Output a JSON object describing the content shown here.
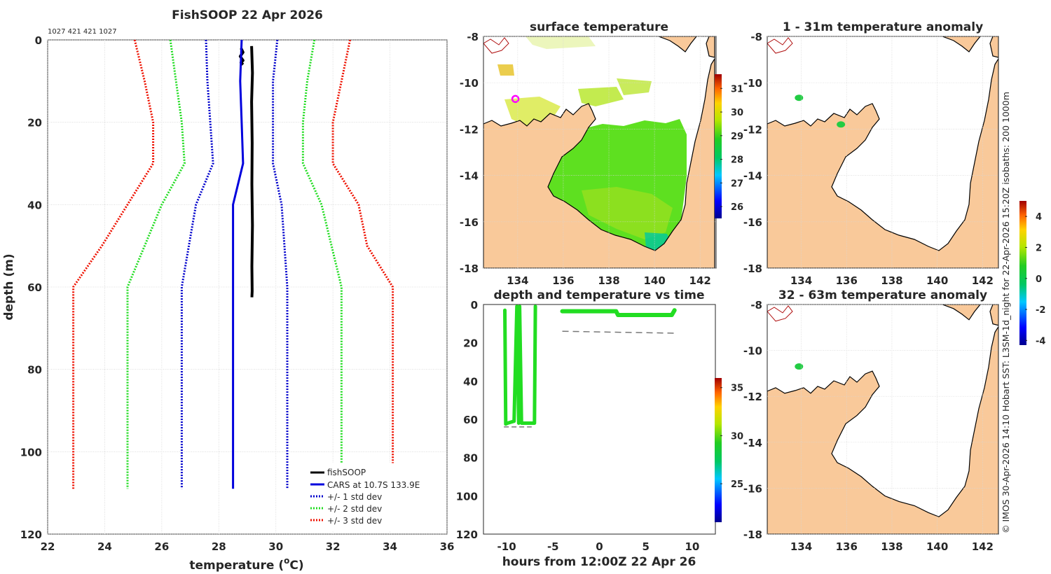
{
  "page_title": "FishSOOP 22 Apr 2026",
  "header_ids": "1027 421 421 1027",
  "copyright": "© IMOS 30-Apr-2026 14:10 Hobart SST: L3SM-1d_night for 22-Apr-2026 15:20Z isobaths: 200  1000m",
  "colors": {
    "fishsoop": "#000000",
    "cars": "#0000dd",
    "std1": "#0000cc",
    "std2": "#22dd22",
    "std3": "#ee1100",
    "land": "#f9c99a",
    "sst_green": "#22cc22",
    "grid": "#d6d6d6"
  },
  "chart_data": [
    {
      "id": "profile",
      "type": "line",
      "title": "FishSOOP 22 Apr 2026",
      "xlabel": "temperature (",
      "xlabel_sup": "o",
      "xlabel_tail": "C)",
      "ylabel": "depth (m)",
      "xlim": [
        22,
        36
      ],
      "ylim": [
        0,
        120
      ],
      "y_reversed": true,
      "grid": true,
      "xticks": [
        "22",
        "24",
        "26",
        "28",
        "30",
        "32",
        "34",
        "36"
      ],
      "yticks": [
        "0",
        "20",
        "40",
        "60",
        "80",
        "100",
        "120"
      ],
      "legend_position": "bottom-right",
      "legend": [
        "fishSOOP",
        "CARS at 10.7S 133.9E",
        "+/- 1 std dev",
        "+/- 2 std dev",
        "+/- 3 std dev"
      ],
      "series": [
        {
          "name": "fishSOOP",
          "style": "solid-thick",
          "color": "#000000",
          "x": [
            29.15,
            29.18,
            29.15,
            29.17,
            29.16,
            29.18,
            29.16,
            29.17,
            29.16
          ],
          "y": [
            1.5,
            8,
            15,
            25,
            35,
            45,
            55,
            61,
            62.5
          ]
        },
        {
          "name": "fishSOOP cast 2",
          "style": "solid-thick",
          "color": "#000000",
          "x": [
            28.78,
            28.85,
            28.75,
            28.85,
            28.78,
            28.85
          ],
          "y": [
            2,
            3,
            4,
            5,
            5.5,
            6
          ]
        },
        {
          "name": "CARS at 10.7S 133.9E",
          "style": "solid",
          "color": "#0000dd",
          "x": [
            28.8,
            28.75,
            28.8,
            28.85,
            28.5,
            28.5
          ],
          "y": [
            0,
            10,
            20,
            30,
            40,
            60
          ],
          "y_end": 109
        },
        {
          "name": "+1 std dev",
          "style": "dotted",
          "color": "#0000cc",
          "x": [
            30.05,
            29.9,
            29.9,
            29.9,
            30.2,
            30.4,
            30.4
          ],
          "y": [
            0,
            10,
            20,
            30,
            40,
            60,
            109
          ]
        },
        {
          "name": "-1 std dev",
          "style": "dotted",
          "color": "#0000cc",
          "x": [
            27.55,
            27.6,
            27.7,
            27.8,
            27.2,
            26.7,
            26.7
          ],
          "y": [
            0,
            10,
            20,
            30,
            40,
            60,
            109
          ]
        },
        {
          "name": "+2 std dev",
          "style": "dotted",
          "color": "#22dd22",
          "x": [
            31.35,
            31.1,
            30.95,
            30.95,
            31.6,
            32.3,
            32.3
          ],
          "y": [
            0,
            10,
            20,
            30,
            40,
            60,
            109
          ]
        },
        {
          "name": "-2 std dev",
          "style": "dotted",
          "color": "#22dd22",
          "x": [
            26.3,
            26.5,
            26.7,
            26.8,
            26.0,
            24.8,
            24.8
          ],
          "y": [
            0,
            10,
            20,
            30,
            40,
            60,
            109
          ]
        },
        {
          "name": "+3 std dev",
          "style": "dotted",
          "color": "#ee1100",
          "x": [
            32.6,
            32.3,
            32.0,
            32.0,
            32.9,
            33.2,
            34.1,
            34.1
          ],
          "y": [
            0,
            10,
            20,
            30,
            40,
            50,
            60,
            109
          ]
        },
        {
          "name": "-3 std dev",
          "style": "dotted",
          "color": "#ee1100",
          "x": [
            25.05,
            25.4,
            25.7,
            25.7,
            24.8,
            23.9,
            22.9,
            22.9
          ],
          "y": [
            0,
            10,
            20,
            30,
            40,
            50,
            60,
            109
          ]
        }
      ]
    },
    {
      "id": "surface_temperature",
      "type": "heatmap",
      "title": "surface temperature",
      "xlim": [
        132.5,
        142.7
      ],
      "ylim": [
        -18,
        -8
      ],
      "xticks": [
        "134",
        "136",
        "138",
        "140",
        "142"
      ],
      "yticks": [
        "-8",
        "-10",
        "-12",
        "-14",
        "-16",
        "-18"
      ],
      "colorbar": {
        "range": [
          25.5,
          31.6
        ],
        "ticks": [
          "26",
          "27",
          "28",
          "29",
          "30",
          "31"
        ]
      },
      "markers": [
        {
          "lon": 133.9,
          "lat": -10.7,
          "color": "#ff00ff",
          "shape": "ring"
        }
      ]
    },
    {
      "id": "depth_vs_time",
      "type": "scatter",
      "title": "depth and temperature vs time",
      "xlabel": "hours from 12:00Z 22 Apr 26",
      "xlim": [
        -12.5,
        12.5
      ],
      "ylim": [
        0,
        120
      ],
      "y_reversed": true,
      "xticks": [
        "-10",
        "-5",
        "0",
        "5",
        "10"
      ],
      "yticks": [
        "0",
        "20",
        "40",
        "60",
        "80",
        "100",
        "120"
      ],
      "colorbar": {
        "range": [
          21,
          36
        ],
        "ticks": [
          "25",
          "30",
          "35"
        ]
      },
      "tows": [
        {
          "x": [
            -10.2,
            -10.1,
            -9.9,
            -9.2,
            -8.9,
            -8.7,
            -8.6,
            -8.4,
            -7.0,
            -6.9
          ],
          "y": [
            3,
            62.5,
            62,
            61,
            1,
            62,
            1,
            62,
            62,
            1
          ]
        }
      ],
      "surface_track": {
        "x": [
          -4,
          1.8,
          2.0,
          7.8,
          8.1
        ],
        "y": [
          3.5,
          3.5,
          5.5,
          5.5,
          3
        ]
      },
      "bottom_dashes": {
        "x": [
          -4,
          2,
          8.2
        ],
        "y": [
          14,
          14.5,
          15
        ]
      },
      "bottom_dash_low": {
        "x": [
          -10.3,
          -7.3
        ],
        "y": [
          64,
          64
        ]
      }
    },
    {
      "id": "anomaly_1_31",
      "type": "heatmap",
      "title": "1 - 31m temperature anomaly",
      "xlim": [
        132.5,
        142.7
      ],
      "ylim": [
        -18,
        -8
      ],
      "xticks": [
        "134",
        "136",
        "138",
        "140",
        "142"
      ],
      "yticks": [
        "-8",
        "-10",
        "-12",
        "-14",
        "-16",
        "-18"
      ],
      "colorbar": {
        "range": [
          -4.3,
          5
        ],
        "ticks": [
          "4",
          "2",
          "0",
          "-2",
          "-4"
        ]
      },
      "points": [
        {
          "lon": 133.9,
          "lat": -10.65,
          "anomaly": 0.1
        },
        {
          "lon": 135.75,
          "lat": -11.8,
          "anomaly": 0.1
        }
      ]
    },
    {
      "id": "anomaly_32_63",
      "type": "heatmap",
      "title": "32 - 63m temperature anomaly",
      "xlim": [
        132.5,
        142.7
      ],
      "ylim": [
        -18,
        -8
      ],
      "xticks": [
        "134",
        "136",
        "138",
        "140",
        "142"
      ],
      "yticks": [
        "-8",
        "-10",
        "-12",
        "-14",
        "-16",
        "-18"
      ],
      "points": [
        {
          "lon": 133.9,
          "lat": -10.7,
          "anomaly": 0.1
        }
      ]
    }
  ]
}
